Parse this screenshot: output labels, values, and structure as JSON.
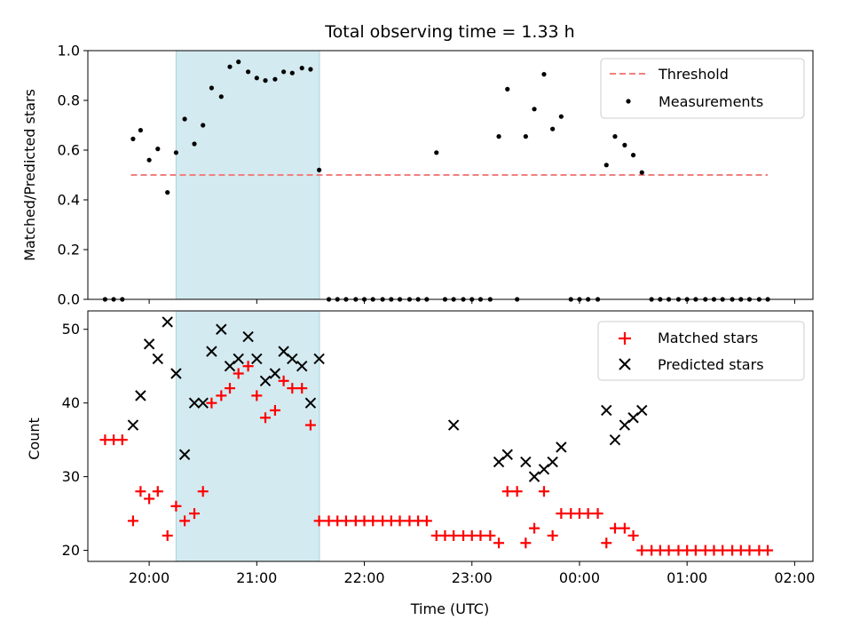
{
  "title": "Total observing time = 1.33 h",
  "chart_data": [
    {
      "type": "scatter",
      "ylabel": "Matched/Predicted stars",
      "xlim": [
        19.43,
        26.17
      ],
      "ylim": [
        0.0,
        1.0
      ],
      "yticks": [
        0.0,
        0.2,
        0.4,
        0.6,
        0.8,
        1.0
      ],
      "ytick_labels": [
        "0.0",
        "0.2",
        "0.4",
        "0.6",
        "0.8",
        "1.0"
      ],
      "shaded_interval": [
        20.25,
        21.583
      ],
      "shade_color": "#d3eaf0",
      "threshold": {
        "name": "Threshold",
        "y": 0.5,
        "x_range": [
          19.83,
          25.75
        ],
        "color": "#f08080"
      },
      "series": [
        {
          "name": "Measurements",
          "color": "#000000",
          "marker": "dot",
          "x": [
            19.59,
            19.67,
            19.75,
            19.85,
            19.92,
            20.0,
            20.08,
            20.17,
            20.25,
            20.33,
            20.42,
            20.5,
            20.58,
            20.67,
            20.75,
            20.83,
            20.92,
            21.0,
            21.08,
            21.17,
            21.25,
            21.33,
            21.42,
            21.5,
            21.58,
            21.67,
            21.75,
            21.83,
            21.92,
            22.0,
            22.08,
            22.17,
            22.25,
            22.33,
            22.42,
            22.5,
            22.58,
            22.67,
            22.75,
            22.83,
            22.92,
            23.0,
            23.08,
            23.17,
            23.25,
            23.33,
            23.42,
            23.5,
            23.58,
            23.67,
            23.75,
            23.83,
            23.92,
            24.0,
            24.08,
            24.17,
            24.25,
            24.33,
            24.42,
            24.5,
            24.58,
            24.67,
            24.75,
            24.83,
            24.92,
            25.0,
            25.08,
            25.17,
            25.25,
            25.33,
            25.42,
            25.5,
            25.58,
            25.67,
            25.75
          ],
          "y": [
            0.0,
            0.0,
            0.0,
            0.645,
            0.68,
            0.56,
            0.605,
            0.43,
            0.59,
            0.725,
            0.625,
            0.7,
            0.85,
            0.815,
            0.935,
            0.955,
            0.915,
            0.89,
            0.88,
            0.885,
            0.915,
            0.91,
            0.93,
            0.925,
            0.52,
            0.0,
            0.0,
            0.0,
            0.0,
            0.0,
            0.0,
            0.0,
            0.0,
            0.0,
            0.0,
            0.0,
            0.0,
            0.59,
            0.0,
            0.0,
            0.0,
            0.0,
            0.0,
            0.0,
            0.655,
            0.845,
            0.0,
            0.655,
            0.765,
            0.905,
            0.685,
            0.735,
            0.0,
            0.0,
            0.0,
            0.0,
            0.54,
            0.655,
            0.62,
            0.58,
            0.51,
            0.0,
            0.0,
            0.0,
            0.0,
            0.0,
            0.0,
            0.0,
            0.0,
            0.0,
            0.0,
            0.0,
            0.0,
            0.0,
            0.0
          ]
        }
      ],
      "legend": {
        "placement": "top-right",
        "entries": [
          "Threshold",
          "Measurements"
        ]
      }
    },
    {
      "type": "scatter",
      "xlabel": "Time (UTC)",
      "ylabel": "Count",
      "xlim": [
        19.43,
        26.17
      ],
      "ylim": [
        18.5,
        52.5
      ],
      "xticks": [
        20,
        21,
        22,
        23,
        24,
        25,
        26
      ],
      "xtick_labels": [
        "20:00",
        "21:00",
        "22:00",
        "23:00",
        "00:00",
        "01:00",
        "02:00"
      ],
      "yticks": [
        20,
        30,
        40,
        50
      ],
      "ytick_labels": [
        "20",
        "30",
        "40",
        "50"
      ],
      "shaded_interval": [
        20.25,
        21.583
      ],
      "shade_color": "#d3eaf0",
      "series": [
        {
          "name": "Matched stars",
          "color": "#ff0000",
          "marker": "plus",
          "x": [
            19.59,
            19.67,
            19.75,
            19.85,
            19.92,
            20.0,
            20.08,
            20.17,
            20.25,
            20.33,
            20.42,
            20.5,
            20.58,
            20.67,
            20.75,
            20.83,
            20.92,
            21.0,
            21.08,
            21.17,
            21.25,
            21.33,
            21.42,
            21.5,
            21.58,
            21.67,
            21.75,
            21.83,
            21.92,
            22.0,
            22.08,
            22.17,
            22.25,
            22.33,
            22.42,
            22.5,
            22.58,
            22.67,
            22.75,
            22.83,
            22.92,
            23.0,
            23.08,
            23.17,
            23.25,
            23.33,
            23.42,
            23.5,
            23.58,
            23.67,
            23.75,
            23.83,
            23.92,
            24.0,
            24.08,
            24.17,
            24.25,
            24.33,
            24.42,
            24.5,
            24.58,
            24.67,
            24.75,
            24.83,
            24.92,
            25.0,
            25.08,
            25.17,
            25.25,
            25.33,
            25.42,
            25.5,
            25.58,
            25.67,
            25.75
          ],
          "y": [
            35,
            35,
            35,
            24,
            28,
            27,
            28,
            22,
            26,
            24,
            25,
            28,
            40,
            41,
            42,
            44,
            45,
            41,
            38,
            39,
            43,
            42,
            42,
            37,
            24,
            24,
            24,
            24,
            24,
            24,
            24,
            24,
            24,
            24,
            24,
            24,
            24,
            22,
            22,
            22,
            22,
            22,
            22,
            22,
            21,
            28,
            28,
            21,
            23,
            28,
            22,
            25,
            25,
            25,
            25,
            25,
            21,
            23,
            23,
            22,
            20,
            20,
            20,
            20,
            20,
            20,
            20,
            20,
            20,
            20,
            20,
            20,
            20,
            20,
            20
          ]
        },
        {
          "name": "Predicted stars",
          "color": "#000000",
          "marker": "x",
          "x": [
            19.85,
            19.92,
            20.0,
            20.08,
            20.17,
            20.25,
            20.33,
            20.42,
            20.5,
            20.58,
            20.67,
            20.75,
            20.83,
            20.92,
            21.0,
            21.08,
            21.17,
            21.25,
            21.33,
            21.42,
            21.5,
            21.58,
            22.83,
            23.25,
            23.33,
            23.5,
            23.58,
            23.67,
            23.75,
            23.83,
            24.25,
            24.33,
            24.42,
            24.5,
            24.58
          ],
          "y": [
            37,
            41,
            48,
            46,
            51,
            44,
            33,
            40,
            40,
            47,
            50,
            45,
            46,
            49,
            46,
            43,
            44,
            47,
            46,
            45,
            40,
            46,
            37,
            32,
            33,
            32,
            30,
            31,
            32,
            34,
            39,
            35,
            37,
            38,
            39
          ]
        }
      ],
      "legend": {
        "placement": "top-right",
        "entries": [
          "Matched stars",
          "Predicted stars"
        ]
      }
    }
  ]
}
